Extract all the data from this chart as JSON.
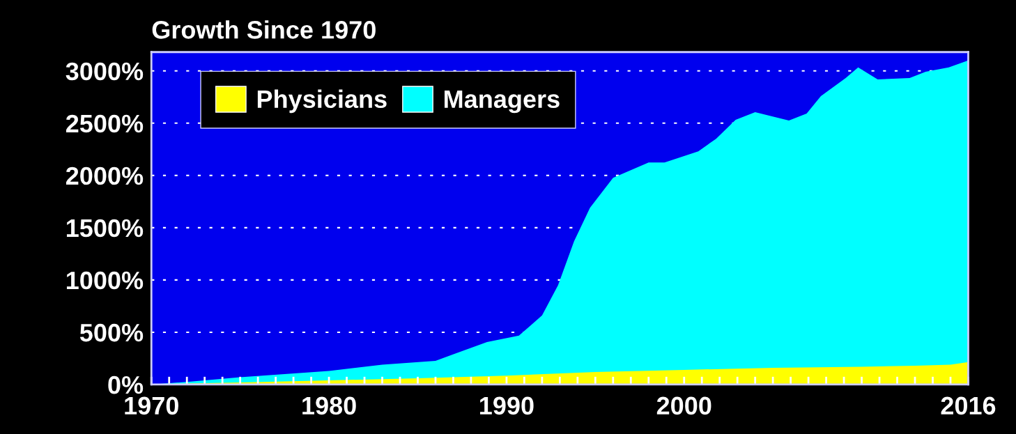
{
  "chart_data": {
    "type": "area",
    "title": "Growth Since 1970",
    "series": [
      {
        "name": "Physicians",
        "color": "#ffff00",
        "x": [
          1970,
          1972,
          1975,
          1980,
          1985,
          1990,
          1995,
          2000,
          2005,
          2010,
          2013,
          2015,
          2016
        ],
        "values": [
          0,
          10,
          20,
          40,
          60,
          85,
          120,
          140,
          160,
          170,
          180,
          190,
          215
        ]
      },
      {
        "name": "Managers",
        "color": "#00ffff",
        "x": [
          1970,
          1972,
          1975,
          1980,
          1983,
          1986,
          1988.9,
          1990.7,
          1992,
          1992.9,
          1993.8,
          1994.7,
          1996,
          1998,
          1998.9,
          2000.8,
          2001.8,
          2002.9,
          2004,
          2005.9,
          2006.9,
          2007.7,
          2009.1,
          2009.8,
          2010.9,
          2012.7,
          2013.6,
          2014.9,
          2016
        ],
        "values": [
          0,
          25,
          70,
          130,
          190,
          227,
          407,
          468,
          661,
          949,
          1370,
          1690,
          1978,
          2124,
          2124,
          2231,
          2351,
          2532,
          2605,
          2525,
          2592,
          2759,
          2932,
          3033,
          2919,
          2932,
          2992,
          3033,
          3100
        ]
      }
    ],
    "xlim": [
      1970,
      2016
    ],
    "xticks": [
      1970,
      {
        "value": 1971,
        "label": null
      },
      {
        "value": 1972,
        "label": null
      },
      {
        "value": 1973,
        "label": null
      },
      {
        "value": 1974,
        "label": null
      },
      {
        "value": 1975,
        "label": null
      },
      {
        "value": 1976,
        "label": null
      },
      {
        "value": 1977,
        "label": null
      },
      {
        "value": 1978,
        "label": null
      },
      {
        "value": 1979,
        "label": null
      },
      1980,
      {
        "value": 1981,
        "label": null
      },
      {
        "value": 1982,
        "label": null
      },
      {
        "value": 1983,
        "label": null
      },
      {
        "value": 1984,
        "label": null
      },
      {
        "value": 1985,
        "label": null
      },
      {
        "value": 1986,
        "label": null
      },
      {
        "value": 1987,
        "label": null
      },
      {
        "value": 1988,
        "label": null
      },
      {
        "value": 1989,
        "label": null
      },
      1990,
      {
        "value": 1991,
        "label": null
      },
      {
        "value": 1992,
        "label": null
      },
      {
        "value": 1993,
        "label": null
      },
      {
        "value": 1994,
        "label": null
      },
      {
        "value": 1995,
        "label": null
      },
      {
        "value": 1996,
        "label": null
      },
      {
        "value": 1997,
        "label": null
      },
      {
        "value": 1998,
        "label": null
      },
      {
        "value": 1999,
        "label": null
      },
      2000,
      {
        "value": 2001,
        "label": null
      },
      {
        "value": 2002,
        "label": null
      },
      {
        "value": 2003,
        "label": null
      },
      {
        "value": 2004,
        "label": null
      },
      {
        "value": 2005,
        "label": null
      },
      {
        "value": 2006,
        "label": null
      },
      {
        "value": 2007,
        "label": null
      },
      {
        "value": 2008,
        "label": null
      },
      {
        "value": 2009,
        "label": null
      },
      {
        "value": 2010,
        "label": null
      },
      {
        "value": 2011,
        "label": null
      },
      {
        "value": 2012,
        "label": null
      },
      {
        "value": 2013,
        "label": null
      },
      {
        "value": 2014,
        "label": null
      },
      {
        "value": 2015,
        "label": null
      },
      2016
    ],
    "ylim": [
      0,
      3180
    ],
    "yticks": [
      {
        "value": 0,
        "label": "0%"
      },
      {
        "value": 500,
        "label": "500%"
      },
      {
        "value": 1000,
        "label": "1000%"
      },
      {
        "value": 1500,
        "label": "1500%"
      },
      {
        "value": 2000,
        "label": "2000%"
      },
      {
        "value": 2500,
        "label": "2500%"
      },
      {
        "value": 3000,
        "label": "3000%"
      }
    ],
    "grid": "y",
    "legend": "top left"
  }
}
